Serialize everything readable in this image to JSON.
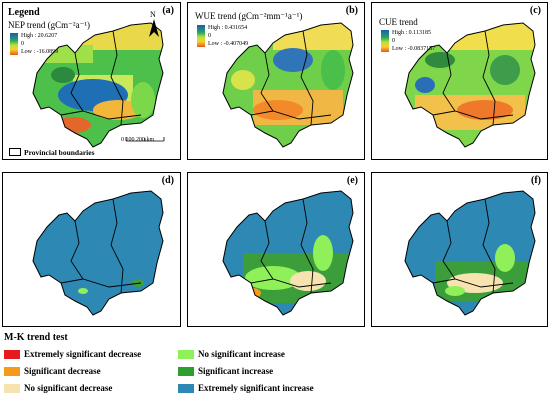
{
  "panels": {
    "a": {
      "label": "(a)",
      "legend_title": "Legend",
      "trend_title": "NEP trend (gCm⁻²a⁻¹)",
      "high": "High : 20.6207",
      "zero": "0",
      "low": "Low : -16.0899",
      "north": "N",
      "provincial": "Provincial boundaries",
      "scale": "0  100 200 km"
    },
    "b": {
      "label": "(b)",
      "trend_title": "WUE trend (gCm⁻²mm⁻¹a⁻¹)",
      "high": "High : 0.431654",
      "zero": "0",
      "low": "Low : -0.407049"
    },
    "c": {
      "label": "(c)",
      "trend_title": "CUE trend",
      "high": "High : 0.113185",
      "zero": "0",
      "low": "Low : -0.0837157"
    },
    "d": {
      "label": "(d)"
    },
    "e": {
      "label": "(e)"
    },
    "f": {
      "label": "(f)"
    }
  },
  "mk": {
    "title": "M-K trend test",
    "items": [
      {
        "label": "Extremely significant decrease",
        "color": "#e41a1c"
      },
      {
        "label": "Significant decrease",
        "color": "#f59b1a"
      },
      {
        "label": "No significant decrease",
        "color": "#f6e3b0"
      },
      {
        "label": "No significant increase",
        "color": "#8ff05a"
      },
      {
        "label": "Significant increase",
        "color": "#2e9e2e"
      },
      {
        "label": "Extremely significant increase",
        "color": "#2d88b4"
      }
    ]
  }
}
